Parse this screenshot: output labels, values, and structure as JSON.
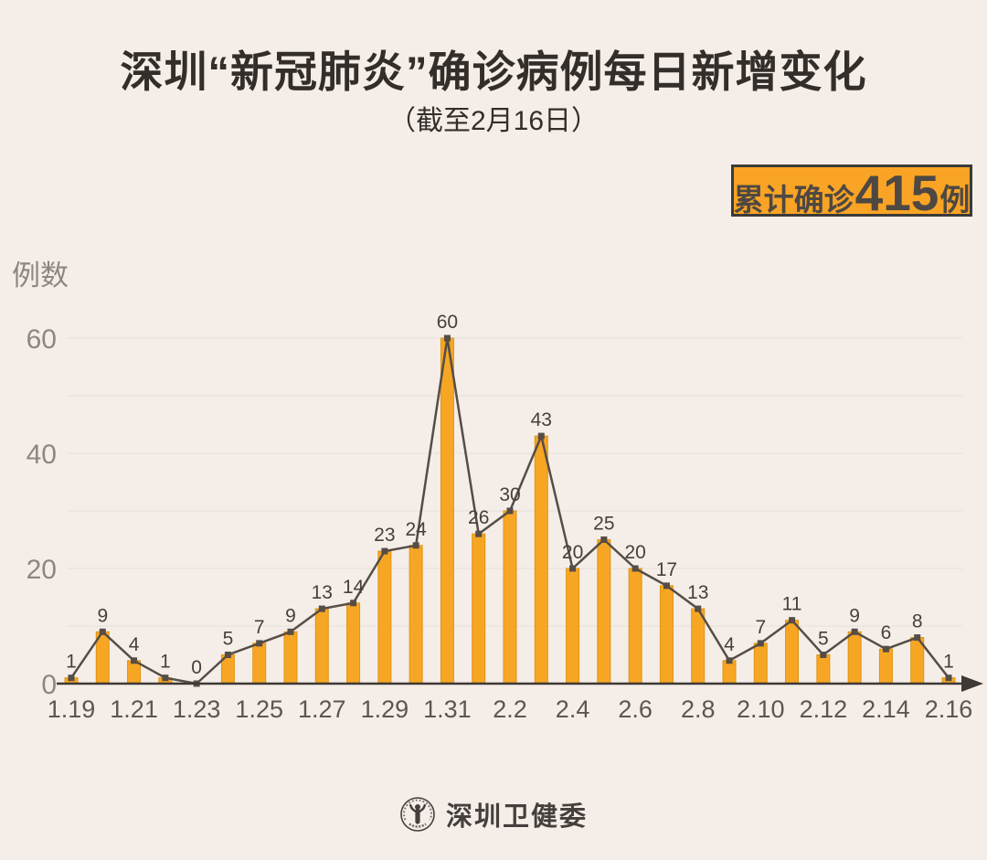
{
  "page": {
    "title": "深圳“新冠肺炎”确诊病例每日新增变化",
    "subtitle": "（截至2月16日）",
    "badge": {
      "prefix": "累计确诊",
      "number": "415",
      "suffix": "例"
    },
    "footer": {
      "org_name": "深圳卫健委",
      "logo": "shenzhen-health-commission-seal"
    }
  },
  "colors": {
    "background": "#F5EEE8",
    "title_text": "#332E2A",
    "badge_bg": "#F9A424",
    "badge_border": "#3A3A3A",
    "badge_text": "#4E4843",
    "bar_fill": "#F7A624",
    "bar_border": "#DF9414",
    "line": "#554D46",
    "grid": "#E9E1DB",
    "axis": "#3E3935",
    "value_label": "#454039",
    "x_tick": "#5C5650",
    "y_tick": "#8D8780",
    "footer_text": "#45403E"
  },
  "chart_data": {
    "type": "bar",
    "overlay": "line",
    "title": "深圳“新冠肺炎”确诊病例每日新增变化",
    "subtitle": "（截至2月16日）",
    "ylabel": "例数",
    "xlabel": "",
    "categories": [
      "1.19",
      "1.20",
      "1.21",
      "1.22",
      "1.23",
      "1.24",
      "1.25",
      "1.26",
      "1.27",
      "1.28",
      "1.29",
      "1.30",
      "1.31",
      "2.1",
      "2.2",
      "2.3",
      "2.4",
      "2.5",
      "2.6",
      "2.7",
      "2.8",
      "2.9",
      "2.10",
      "2.11",
      "2.12",
      "2.13",
      "2.14",
      "2.15",
      "2.16"
    ],
    "values": [
      1,
      9,
      4,
      1,
      0,
      5,
      7,
      9,
      13,
      14,
      23,
      24,
      60,
      26,
      30,
      43,
      20,
      25,
      20,
      17,
      13,
      4,
      7,
      11,
      5,
      9,
      6,
      8,
      1
    ],
    "value_labels_shown": true,
    "x_tick_shown": [
      "1.19",
      "1.21",
      "1.23",
      "1.25",
      "1.27",
      "1.29",
      "1.31",
      "2.2",
      "2.4",
      "2.6",
      "2.8",
      "2.10",
      "2.12",
      "2.14",
      "2.16"
    ],
    "yticks": [
      0,
      20,
      40,
      60
    ],
    "ylim": [
      0,
      60
    ],
    "gridline_step": 10,
    "grid": true,
    "legend": false,
    "cumulative_total": 415
  }
}
